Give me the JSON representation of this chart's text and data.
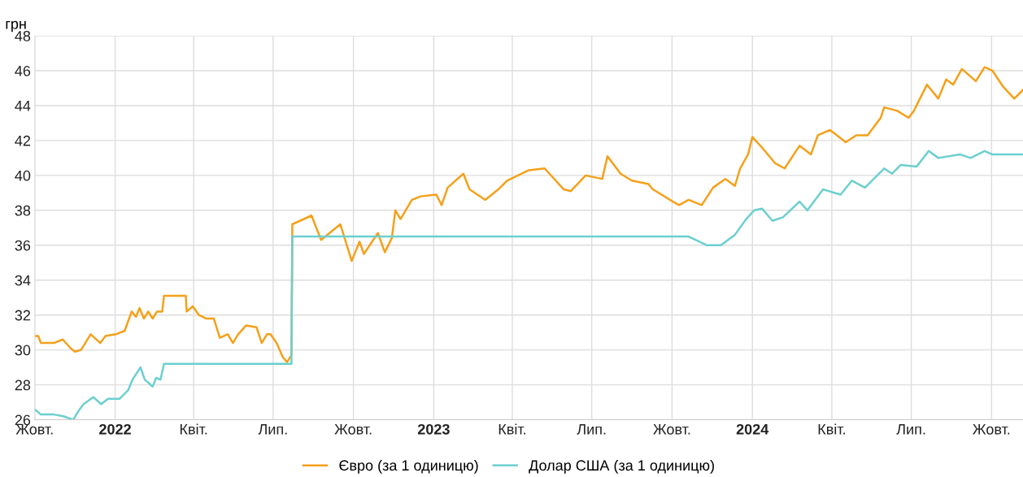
{
  "chart_data": {
    "type": "line",
    "ylabel": "грн",
    "xlim": [
      "2021-10-01",
      "2024-11-06"
    ],
    "ylim": [
      26,
      48
    ],
    "yticks": [
      26,
      28,
      30,
      32,
      34,
      36,
      38,
      40,
      42,
      44,
      46,
      48
    ],
    "xticks": [
      {
        "value": "2021-10-01",
        "label": "Жовт."
      },
      {
        "value": "2022-01-01",
        "label": "2022"
      },
      {
        "value": "2022-04-01",
        "label": "Квіт."
      },
      {
        "value": "2022-07-01",
        "label": "Лип."
      },
      {
        "value": "2022-10-01",
        "label": "Жовт."
      },
      {
        "value": "2023-01-01",
        "label": "2023"
      },
      {
        "value": "2023-04-01",
        "label": "Квіт."
      },
      {
        "value": "2023-07-01",
        "label": "Лип."
      },
      {
        "value": "2023-10-01",
        "label": "Жовт."
      },
      {
        "value": "2024-01-01",
        "label": "2024"
      },
      {
        "value": "2024-04-01",
        "label": "Квіт."
      },
      {
        "value": "2024-07-01",
        "label": "Лип."
      },
      {
        "value": "2024-10-01",
        "label": "Жовт."
      }
    ],
    "grid": true,
    "legend": "bottom",
    "marker": "none",
    "line_style": "solid",
    "series": [
      {
        "name": "Євро (за 1 одиницю)",
        "color": "#f5a01a",
        "x": [
          "2021-10-01",
          "2021-10-05",
          "2021-10-08",
          "2021-10-23",
          "2021-11-02",
          "2021-11-11",
          "2021-11-16",
          "2021-11-23",
          "2021-12-04",
          "2021-12-15",
          "2021-12-21",
          "2022-01-02",
          "2022-01-12",
          "2022-01-20",
          "2022-01-25",
          "2022-01-29",
          "2022-02-03",
          "2022-02-08",
          "2022-02-13",
          "2022-02-18",
          "2022-02-24",
          "2022-02-26",
          "2022-03-23",
          "2022-03-24",
          "2022-03-31",
          "2022-04-07",
          "2022-04-15",
          "2022-04-24",
          "2022-05-01",
          "2022-05-10",
          "2022-05-16",
          "2022-05-22",
          "2022-05-31",
          "2022-06-12",
          "2022-06-18",
          "2022-06-24",
          "2022-06-28",
          "2022-07-05",
          "2022-07-12",
          "2022-07-17",
          "2022-07-22",
          "2022-07-23",
          "2022-08-14",
          "2022-08-25",
          "2022-09-16",
          "2022-09-29",
          "2022-10-08",
          "2022-10-13",
          "2022-10-29",
          "2022-11-06",
          "2022-11-14",
          "2022-11-18",
          "2022-11-24",
          "2022-12-07",
          "2022-12-17",
          "2023-01-04",
          "2023-01-10",
          "2023-01-17",
          "2023-02-04",
          "2023-02-11",
          "2023-03-01",
          "2023-03-16",
          "2023-03-26",
          "2023-04-20",
          "2023-05-08",
          "2023-05-30",
          "2023-06-07",
          "2023-06-24",
          "2023-07-13",
          "2023-07-19",
          "2023-08-03",
          "2023-08-16",
          "2023-09-04",
          "2023-09-09",
          "2023-10-02",
          "2023-10-09",
          "2023-10-20",
          "2023-11-04",
          "2023-11-17",
          "2023-12-01",
          "2023-12-12",
          "2023-12-18",
          "2023-12-27",
          "2024-01-01",
          "2024-01-12",
          "2024-01-27",
          "2024-02-07",
          "2024-02-24",
          "2024-03-08",
          "2024-03-16",
          "2024-03-30",
          "2024-04-17",
          "2024-04-29",
          "2024-05-12",
          "2024-05-27",
          "2024-05-31",
          "2024-06-15",
          "2024-06-28",
          "2024-07-04",
          "2024-07-19",
          "2024-08-01",
          "2024-08-10",
          "2024-08-18",
          "2024-08-28",
          "2024-09-13",
          "2024-09-23",
          "2024-10-02",
          "2024-10-14",
          "2024-10-27",
          "2024-11-06"
        ],
        "values": [
          30.8,
          30.8,
          30.4,
          30.4,
          30.6,
          30.1,
          29.9,
          30.0,
          30.9,
          30.4,
          30.8,
          30.9,
          31.1,
          32.2,
          31.9,
          32.4,
          31.8,
          32.2,
          31.8,
          32.2,
          32.2,
          33.1,
          33.1,
          32.2,
          32.5,
          32.0,
          31.8,
          31.8,
          30.7,
          30.9,
          30.4,
          30.9,
          31.4,
          31.3,
          30.4,
          30.9,
          30.9,
          30.4,
          29.6,
          29.3,
          29.7,
          37.2,
          37.7,
          36.3,
          37.2,
          35.1,
          36.2,
          35.5,
          36.7,
          35.6,
          36.4,
          38.0,
          37.5,
          38.6,
          38.8,
          38.9,
          38.3,
          39.3,
          40.1,
          39.2,
          38.6,
          39.2,
          39.7,
          40.3,
          40.4,
          39.2,
          39.1,
          40.0,
          39.8,
          41.1,
          40.1,
          39.7,
          39.5,
          39.2,
          38.5,
          38.3,
          38.6,
          38.3,
          39.3,
          39.8,
          39.4,
          40.4,
          41.2,
          42.2,
          41.6,
          40.7,
          40.4,
          41.7,
          41.2,
          42.3,
          42.6,
          41.9,
          42.3,
          42.3,
          43.3,
          43.9,
          43.7,
          43.3,
          43.7,
          45.2,
          44.4,
          45.5,
          45.2,
          46.1,
          45.4,
          46.2,
          46.0,
          45.1,
          44.4,
          44.9
        ]
      },
      {
        "name": "Долар США (за 1 одиницю)",
        "color": "#6ccfcf",
        "x": [
          "2021-10-01",
          "2021-10-08",
          "2021-10-23",
          "2021-11-03",
          "2021-11-14",
          "2021-11-20",
          "2021-11-26",
          "2021-12-07",
          "2021-12-16",
          "2021-12-24",
          "2022-01-06",
          "2022-01-16",
          "2022-01-21",
          "2022-01-30",
          "2022-02-04",
          "2022-02-13",
          "2022-02-17",
          "2022-02-22",
          "2022-02-26",
          "2022-07-22",
          "2022-07-23",
          "2023-10-02",
          "2023-10-20",
          "2023-11-10",
          "2023-11-26",
          "2023-12-12",
          "2023-12-25",
          "2024-01-03",
          "2024-01-12",
          "2024-01-24",
          "2024-02-05",
          "2024-02-24",
          "2024-03-04",
          "2024-03-22",
          "2024-04-11",
          "2024-04-24",
          "2024-05-09",
          "2024-05-31",
          "2024-06-09",
          "2024-06-19",
          "2024-07-07",
          "2024-07-21",
          "2024-08-01",
          "2024-08-26",
          "2024-09-07",
          "2024-09-23",
          "2024-10-02",
          "2024-10-21",
          "2024-11-06"
        ],
        "values": [
          26.6,
          26.3,
          26.3,
          26.2,
          26.0,
          26.5,
          26.9,
          27.3,
          26.9,
          27.2,
          27.2,
          27.7,
          28.3,
          29.0,
          28.3,
          27.9,
          28.4,
          28.3,
          29.2,
          29.2,
          36.5,
          36.5,
          36.5,
          36.0,
          36.0,
          36.6,
          37.5,
          38.0,
          38.1,
          37.4,
          37.6,
          38.5,
          38.0,
          39.2,
          38.9,
          39.7,
          39.3,
          40.4,
          40.1,
          40.6,
          40.5,
          41.4,
          41.0,
          41.2,
          41.0,
          41.4,
          41.2,
          41.2,
          41.2
        ]
      }
    ]
  }
}
